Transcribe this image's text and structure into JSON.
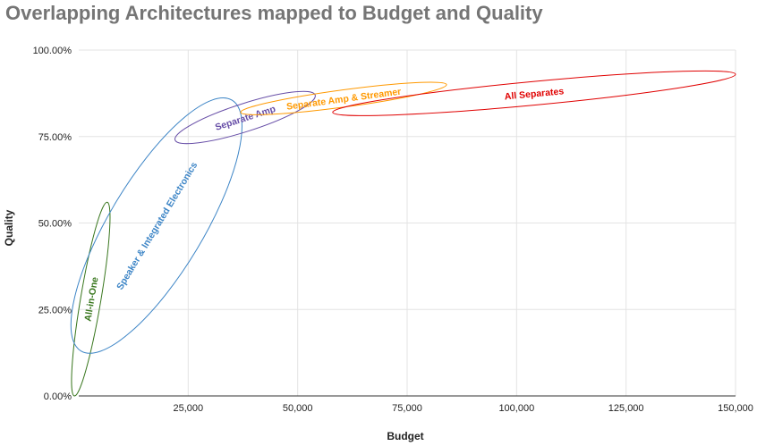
{
  "chart_data": {
    "type": "scatter",
    "title": "Overlapping Architectures mapped to Budget and Quality",
    "xlabel": "Budget",
    "ylabel": "Quality",
    "xlim": [
      0,
      150000
    ],
    "ylim": [
      0,
      1
    ],
    "x_ticks": [
      "25,000",
      "50,000",
      "75,000",
      "100,000",
      "125,000",
      "150,000"
    ],
    "y_ticks": [
      "0.00%",
      "25.00%",
      "50.00%",
      "75.00%",
      "100.00%"
    ],
    "grid": true,
    "legend": "none",
    "regions": [
      {
        "name": "All-in-One",
        "color": "#38761d",
        "x_range": [
          -1000,
          6500
        ],
        "y_range": [
          0.0,
          0.56
        ]
      },
      {
        "name": "Speaker & Integrated Electronics",
        "color": "#3d85c6",
        "x_range": [
          500,
          35000
        ],
        "y_range": [
          0.13,
          0.855
        ]
      },
      {
        "name": "Separate Amp",
        "color": "#674ea7",
        "x_range": [
          22000,
          54000
        ],
        "y_range": [
          0.74,
          0.87
        ]
      },
      {
        "name": "Separate Amp & Streamer",
        "color": "#ff9900",
        "x_range": [
          37000,
          84000
        ],
        "y_range": [
          0.82,
          0.9
        ]
      },
      {
        "name": "All Separates",
        "color": "#e00000",
        "x_range": [
          58000,
          150000
        ],
        "y_range": [
          0.82,
          0.93
        ]
      }
    ]
  }
}
